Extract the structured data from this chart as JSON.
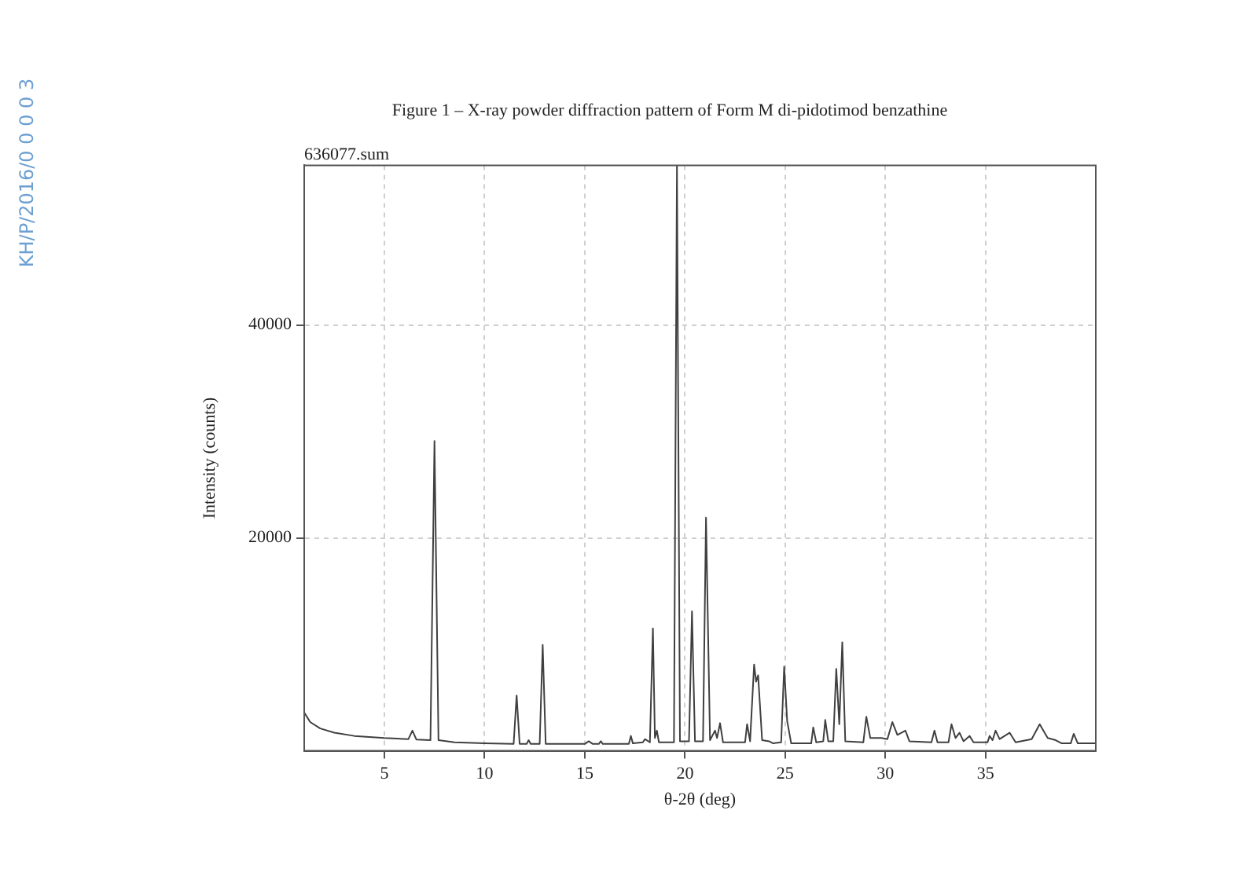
{
  "chart_data": {
    "type": "line",
    "title": "Figure 1 – X-ray powder diffraction pattern of Form M di-pidotimod benzathine",
    "xlabel": "θ-2θ (deg)",
    "ylabel": "Intensity (counts)",
    "annotations": [
      "636077.sum",
      "KH/P/2016/0 0 0 0 3"
    ],
    "xlim": [
      1,
      40.5
    ],
    "xticks": [
      5,
      10,
      15,
      20,
      25,
      30,
      35
    ],
    "ylim": [
      0,
      55000
    ],
    "yticks": [
      20000,
      40000
    ],
    "grid": true,
    "legend": false,
    "marker": "none",
    "line_style": "solid",
    "series": [
      {
        "color": "#404040",
        "x": [
          1,
          1.3,
          1.8,
          2.5,
          3.5,
          5,
          6.2,
          6.4,
          6.6,
          7.3,
          7.5,
          7.7,
          8.5,
          10,
          11.45,
          11.6,
          11.75,
          12.1,
          12.2,
          12.3,
          12.75,
          12.9,
          13.05,
          15,
          15.2,
          15.4,
          15.7,
          15.8,
          15.9,
          17.2,
          17.3,
          17.4,
          17.9,
          18.0,
          18.25,
          18.4,
          18.5,
          18.6,
          18.7,
          19.45,
          19.6,
          19.75,
          20.2,
          20.35,
          20.5,
          20.9,
          21.05,
          21.25,
          21.5,
          21.6,
          21.75,
          21.9,
          23.0,
          23.1,
          23.25,
          23.45,
          23.55,
          23.65,
          23.85,
          24.2,
          24.4,
          24.8,
          24.95,
          25.1,
          25.3,
          26.3,
          26.4,
          26.55,
          26.9,
          27.0,
          27.15,
          27.4,
          27.55,
          27.7,
          27.85,
          28.0,
          28.9,
          29.05,
          29.25,
          29.8,
          30.1,
          30.35,
          30.6,
          31.0,
          31.2,
          32.3,
          32.45,
          32.6,
          33.15,
          33.3,
          33.5,
          33.7,
          33.9,
          34.2,
          34.4,
          35.1,
          35.2,
          35.35,
          35.5,
          35.7,
          36.2,
          36.5,
          37.3,
          37.7,
          38.1,
          38.5,
          38.8,
          39.25,
          39.4,
          39.6,
          40.5
        ],
        "values": [
          3600,
          2700,
          2100,
          1700,
          1400,
          1200,
          1100,
          1900,
          1050,
          1000,
          29100,
          1000,
          800,
          700,
          650,
          5200,
          650,
          650,
          1000,
          650,
          650,
          9950,
          650,
          650,
          900,
          650,
          650,
          900,
          650,
          650,
          1400,
          700,
          800,
          1100,
          800,
          11500,
          1200,
          1900,
          800,
          800,
          55000,
          900,
          900,
          13100,
          900,
          900,
          21900,
          1000,
          1900,
          1200,
          2600,
          800,
          800,
          2500,
          900,
          8100,
          6500,
          7100,
          1000,
          900,
          700,
          800,
          7900,
          2800,
          700,
          700,
          2200,
          800,
          900,
          2900,
          900,
          900,
          7700,
          2500,
          10200,
          900,
          800,
          3200,
          1200,
          1200,
          1100,
          2700,
          1500,
          1900,
          900,
          800,
          1900,
          800,
          800,
          2500,
          1200,
          1700,
          900,
          1400,
          800,
          800,
          1400,
          1000,
          1900,
          1100,
          1700,
          800,
          1100,
          2500,
          1200,
          1000,
          700,
          700,
          1600,
          700,
          700
        ]
      }
    ]
  }
}
